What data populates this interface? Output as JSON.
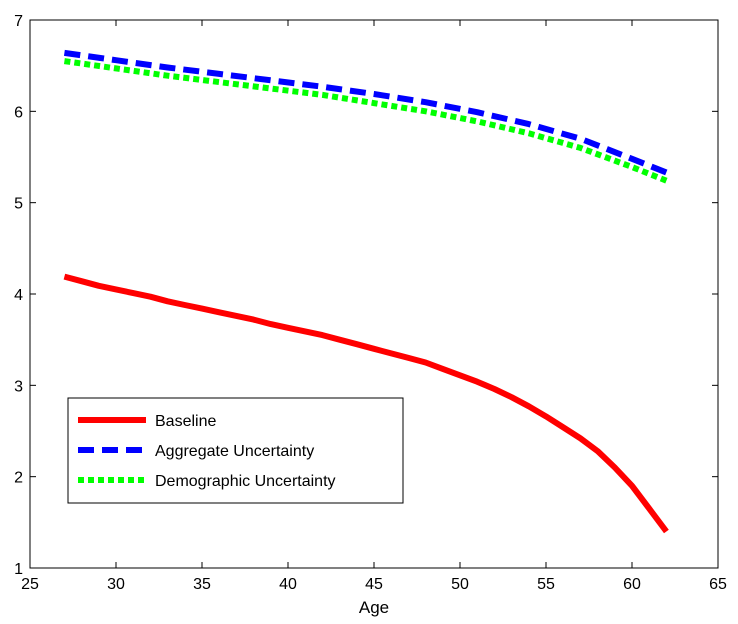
{
  "chart_data": {
    "type": "line",
    "title": "",
    "xlabel": "Age",
    "ylabel": "",
    "xlim": [
      25,
      65
    ],
    "ylim": [
      1,
      7
    ],
    "xticks": [
      25,
      30,
      35,
      40,
      45,
      50,
      55,
      60,
      65
    ],
    "yticks": [
      1,
      2,
      3,
      4,
      5,
      6,
      7
    ],
    "grid": false,
    "legend_position": "lower-left",
    "series": [
      {
        "name": "Baseline",
        "color": "#ff0000",
        "style": "solid",
        "x": [
          27,
          28,
          29,
          30,
          31,
          32,
          33,
          34,
          35,
          36,
          37,
          38,
          39,
          40,
          41,
          42,
          43,
          44,
          45,
          46,
          47,
          48,
          49,
          50,
          51,
          52,
          53,
          54,
          55,
          56,
          57,
          58,
          59,
          60,
          61,
          62
        ],
        "y": [
          4.19,
          4.14,
          4.09,
          4.05,
          4.01,
          3.97,
          3.92,
          3.88,
          3.84,
          3.8,
          3.76,
          3.72,
          3.67,
          3.63,
          3.59,
          3.55,
          3.5,
          3.45,
          3.4,
          3.35,
          3.3,
          3.25,
          3.18,
          3.11,
          3.04,
          2.96,
          2.87,
          2.77,
          2.66,
          2.54,
          2.42,
          2.28,
          2.1,
          1.9,
          1.65,
          1.4
        ]
      },
      {
        "name": "Aggregate Uncertainty",
        "color": "#0000ff",
        "style": "dashed",
        "x": [
          27,
          30,
          33,
          36,
          39,
          42,
          45,
          48,
          51,
          54,
          57,
          60,
          62
        ],
        "y": [
          6.64,
          6.56,
          6.48,
          6.41,
          6.34,
          6.27,
          6.19,
          6.1,
          5.99,
          5.86,
          5.7,
          5.48,
          5.33
        ]
      },
      {
        "name": "Demographic Uncertainty",
        "color": "#00ff00",
        "style": "dotted",
        "x": [
          27,
          30,
          33,
          36,
          39,
          42,
          45,
          48,
          51,
          54,
          57,
          60,
          62
        ],
        "y": [
          6.55,
          6.47,
          6.39,
          6.32,
          6.25,
          6.18,
          6.09,
          6.0,
          5.89,
          5.76,
          5.6,
          5.39,
          5.24
        ]
      }
    ]
  }
}
